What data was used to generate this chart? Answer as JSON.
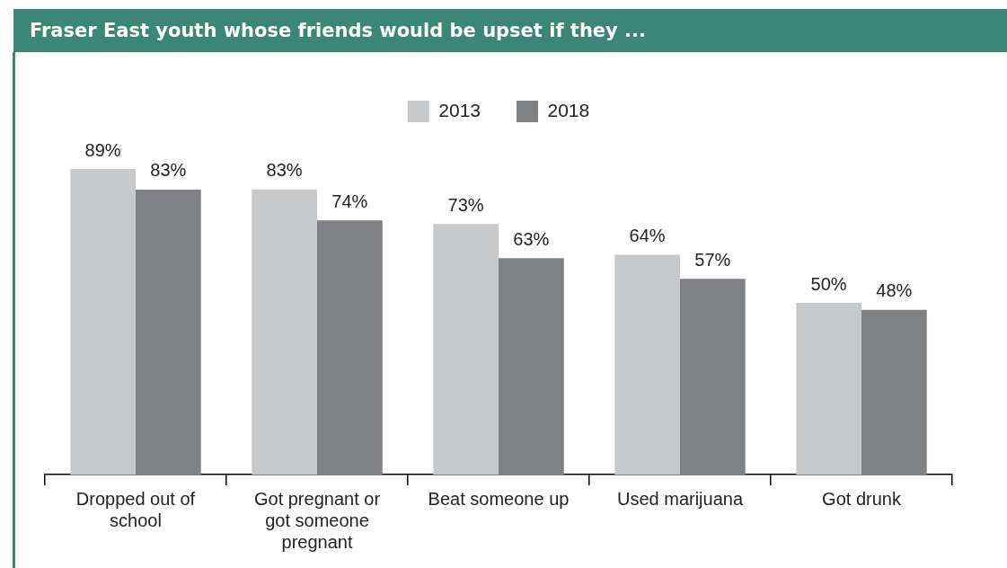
{
  "chart_data": {
    "type": "bar",
    "title": "Fraser East youth whose friends would be upset if they ...",
    "categories": [
      "Dropped out of school",
      "Got pregnant or got someone pregnant",
      "Beat someone up",
      "Used marijuana",
      "Got drunk"
    ],
    "series": [
      {
        "name": "2013",
        "color": "#c8c9cb",
        "values": [
          89,
          83,
          73,
          64,
          50
        ],
        "value_labels": [
          "89%",
          "83%",
          "73%",
          "64%",
          "50%"
        ]
      },
      {
        "name": "2018",
        "color": "#808184",
        "values": [
          83,
          74,
          63,
          57,
          48
        ],
        "value_labels": [
          "83%",
          "74%",
          "63%",
          "57%",
          "48%"
        ]
      }
    ],
    "legend": "top",
    "grid": false,
    "tick_labels": "x"
  }
}
